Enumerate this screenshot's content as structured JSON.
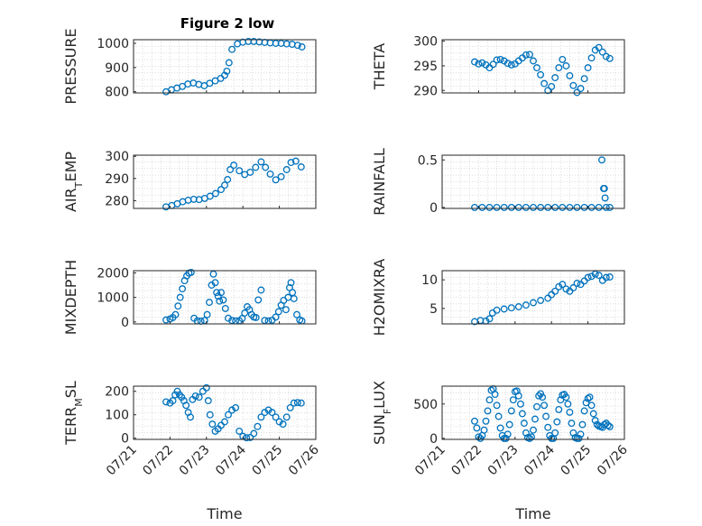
{
  "figure": {
    "title": "Figure 2 low"
  },
  "style": {
    "marker_color": "#0072BD",
    "grid_color": "#d0d0d0",
    "axis_color": "#262626"
  },
  "chart_data": [
    {
      "type": "scatter",
      "ylabel": "PRESSURE",
      "x_ticks": [],
      "yticks": [
        "800",
        "900",
        "1000"
      ],
      "ylim": [
        795,
        1015
      ],
      "xlim": [
        0,
        5
      ],
      "x": [
        0.89,
        1.04,
        1.19,
        1.34,
        1.49,
        1.64,
        1.79,
        1.94,
        2.09,
        2.24,
        2.39,
        2.5,
        2.56,
        2.62,
        2.7,
        2.85,
        3.0,
        3.15,
        3.3,
        3.45,
        3.6,
        3.75,
        3.9,
        4.05,
        4.2,
        4.35,
        4.5,
        4.62
      ],
      "y": [
        800,
        808,
        815,
        822,
        832,
        836,
        830,
        825,
        835,
        845,
        855,
        868,
        885,
        920,
        975,
        998,
        1005,
        1008,
        1008,
        1006,
        1004,
        1002,
        1000,
        1000,
        998,
        996,
        992,
        985
      ]
    },
    {
      "type": "scatter",
      "ylabel": "THETA",
      "x_ticks": [],
      "yticks": [
        "290",
        "295",
        "300"
      ],
      "ylim": [
        289.5,
        300.3
      ],
      "xlim": [
        0,
        5
      ],
      "x": [
        0.89,
        1.0,
        1.1,
        1.2,
        1.3,
        1.4,
        1.5,
        1.6,
        1.7,
        1.8,
        1.9,
        2.0,
        2.1,
        2.2,
        2.3,
        2.4,
        2.5,
        2.6,
        2.7,
        2.8,
        2.9,
        3.0,
        3.1,
        3.2,
        3.3,
        3.4,
        3.5,
        3.6,
        3.7,
        3.8,
        3.9,
        4.0,
        4.1,
        4.2,
        4.3,
        4.4,
        4.5,
        4.6
      ],
      "y": [
        295.8,
        295.4,
        295.6,
        295.2,
        294.6,
        295.3,
        296.2,
        296.3,
        296.0,
        295.5,
        295.2,
        295.4,
        296.0,
        296.6,
        297.2,
        297.3,
        296.0,
        294.6,
        293.2,
        291.4,
        290.0,
        290.8,
        292.6,
        294.6,
        296.3,
        295.0,
        293.0,
        291.0,
        289.6,
        290.4,
        292.4,
        294.6,
        296.6,
        298.2,
        298.7,
        297.8,
        296.9,
        296.5
      ]
    },
    {
      "type": "scatter",
      "ylabel": "AIR_TEMP",
      "x_ticks": [],
      "yticks": [
        "280",
        "290",
        "300"
      ],
      "ylim": [
        276.5,
        300.5
      ],
      "xlim": [
        0,
        5
      ],
      "x": [
        0.89,
        1.05,
        1.2,
        1.35,
        1.5,
        1.65,
        1.8,
        1.95,
        2.1,
        2.25,
        2.4,
        2.5,
        2.58,
        2.65,
        2.75,
        2.9,
        3.05,
        3.2,
        3.35,
        3.5,
        3.62,
        3.75,
        3.9,
        4.05,
        4.2,
        4.32,
        4.45,
        4.6
      ],
      "y": [
        277.2,
        277.8,
        278.6,
        279.5,
        280.2,
        280.6,
        280.5,
        281.0,
        282.0,
        283.2,
        285.0,
        287.0,
        289.5,
        294.0,
        296.0,
        293.5,
        291.8,
        292.8,
        295.0,
        297.5,
        295.0,
        292.0,
        289.4,
        290.8,
        294.0,
        297.2,
        297.8,
        295.2
      ]
    },
    {
      "type": "scatter",
      "ylabel": "RAINFALL",
      "x_ticks": [],
      "yticks": [
        "0",
        "0.5"
      ],
      "ylim": [
        -0.01,
        0.55
      ],
      "xlim": [
        0,
        5
      ],
      "x": [
        0.89,
        1.1,
        1.3,
        1.5,
        1.7,
        1.9,
        2.1,
        2.3,
        2.5,
        2.7,
        2.9,
        3.1,
        3.3,
        3.5,
        3.7,
        3.9,
        4.1,
        4.3,
        4.38,
        4.43,
        4.45,
        4.47,
        4.5,
        4.6
      ],
      "y": [
        0,
        0,
        0,
        0,
        0,
        0,
        0,
        0,
        0,
        0,
        0,
        0,
        0,
        0,
        0,
        0,
        0,
        0,
        0.5,
        0.2,
        0.2,
        0.1,
        0,
        0
      ]
    },
    {
      "type": "scatter",
      "ylabel": "MIXDEPTH",
      "x_ticks": [],
      "yticks": [
        "0",
        "1000",
        "2000"
      ],
      "ylim": [
        -80,
        2090
      ],
      "xlim": [
        0,
        5
      ],
      "x": [
        0.89,
        1.0,
        1.08,
        1.15,
        1.22,
        1.28,
        1.34,
        1.4,
        1.46,
        1.52,
        1.58,
        1.66,
        1.75,
        1.85,
        1.95,
        2.02,
        2.08,
        2.14,
        2.19,
        2.24,
        2.28,
        2.32,
        2.36,
        2.4,
        2.46,
        2.52,
        2.6,
        2.7,
        2.8,
        2.9,
        2.98,
        3.05,
        3.12,
        3.18,
        3.24,
        3.3,
        3.36,
        3.42,
        3.5,
        3.6,
        3.7,
        3.8,
        3.9,
        3.98,
        4.05,
        4.12,
        4.18,
        4.24,
        4.28,
        4.32,
        4.36,
        4.4,
        4.48,
        4.56,
        4.62
      ],
      "y": [
        80,
        120,
        180,
        300,
        650,
        1000,
        1350,
        1680,
        1880,
        1990,
        2020,
        150,
        40,
        30,
        60,
        300,
        800,
        1500,
        1950,
        1600,
        1200,
        1050,
        850,
        1200,
        900,
        550,
        150,
        60,
        40,
        50,
        140,
        360,
        620,
        500,
        300,
        200,
        180,
        900,
        1300,
        60,
        40,
        70,
        200,
        420,
        680,
        880,
        500,
        1000,
        1400,
        1600,
        1200,
        950,
        300,
        80,
        40
      ]
    },
    {
      "type": "scatter",
      "ylabel": "H2OMIXRA",
      "x_ticks": [],
      "yticks": [
        "5",
        "10"
      ],
      "ylim": [
        2.3,
        11.6
      ],
      "xlim": [
        0,
        5
      ],
      "x": [
        0.89,
        1.05,
        1.2,
        1.3,
        1.38,
        1.5,
        1.7,
        1.9,
        2.1,
        2.3,
        2.5,
        2.7,
        2.9,
        3.0,
        3.1,
        3.2,
        3.3,
        3.4,
        3.5,
        3.6,
        3.7,
        3.8,
        3.9,
        4.0,
        4.1,
        4.2,
        4.3,
        4.4,
        4.5,
        4.6
      ],
      "y": [
        2.7,
        2.9,
        2.8,
        3.2,
        4.2,
        4.7,
        4.9,
        5.1,
        5.3,
        5.6,
        6.0,
        6.4,
        6.8,
        7.4,
        8.0,
        8.8,
        9.2,
        8.4,
        8.0,
        8.6,
        9.4,
        9.2,
        9.8,
        10.4,
        10.6,
        11.0,
        10.8,
        9.9,
        10.4,
        10.5
      ]
    },
    {
      "type": "scatter",
      "ylabel": "TERR_MSL",
      "xlabel": "Time",
      "x_ticks": [
        "07/21",
        "07/22",
        "07/23",
        "07/24",
        "07/25",
        "07/26"
      ],
      "yticks": [
        "0",
        "100",
        "200"
      ],
      "ylim": [
        -5,
        222
      ],
      "xlim": [
        0,
        5
      ],
      "x": [
        0.89,
        1.0,
        1.08,
        1.14,
        1.2,
        1.26,
        1.32,
        1.38,
        1.44,
        1.5,
        1.56,
        1.62,
        1.7,
        1.8,
        1.9,
        2.0,
        2.05,
        2.1,
        2.16,
        2.24,
        2.32,
        2.4,
        2.5,
        2.6,
        2.7,
        2.8,
        2.9,
        3.0,
        3.1,
        3.2,
        3.3,
        3.4,
        3.5,
        3.6,
        3.7,
        3.8,
        3.9,
        4.0,
        4.1,
        4.2,
        4.3,
        4.4,
        4.5,
        4.6
      ],
      "y": [
        155,
        150,
        160,
        185,
        200,
        185,
        175,
        160,
        140,
        110,
        90,
        165,
        180,
        175,
        200,
        215,
        160,
        100,
        60,
        30,
        40,
        55,
        70,
        100,
        120,
        130,
        30,
        8,
        2,
        3,
        20,
        50,
        90,
        110,
        120,
        110,
        90,
        70,
        60,
        90,
        130,
        150,
        152,
        150
      ]
    },
    {
      "type": "scatter",
      "ylabel": "SUN_FLUX",
      "xlabel": "Time",
      "x_ticks": [
        "07/21",
        "07/22",
        "07/23",
        "07/24",
        "07/25",
        "07/26"
      ],
      "yticks": [
        "0",
        "500"
      ],
      "ylim": [
        -15,
        760
      ],
      "xlim": [
        0,
        5
      ],
      "x": [
        0.89,
        0.95,
        1.0,
        1.05,
        1.1,
        1.15,
        1.2,
        1.25,
        1.3,
        1.35,
        1.4,
        1.45,
        1.5,
        1.55,
        1.6,
        1.65,
        1.7,
        1.75,
        1.8,
        1.85,
        1.9,
        1.95,
        2.0,
        2.05,
        2.1,
        2.15,
        2.2,
        2.25,
        2.3,
        2.35,
        2.4,
        2.45,
        2.5,
        2.55,
        2.6,
        2.65,
        2.7,
        2.75,
        2.8,
        2.85,
        2.9,
        2.95,
        3.0,
        3.05,
        3.1,
        3.15,
        3.2,
        3.25,
        3.3,
        3.35,
        3.4,
        3.45,
        3.5,
        3.55,
        3.6,
        3.65,
        3.7,
        3.75,
        3.8,
        3.85,
        3.9,
        3.95,
        4.0,
        4.05,
        4.1,
        4.15,
        4.2,
        4.25,
        4.3,
        4.35,
        4.4,
        4.45,
        4.5,
        4.55,
        4.6
      ],
      "y": [
        250,
        150,
        20,
        0,
        40,
        120,
        250,
        400,
        560,
        700,
        720,
        640,
        480,
        320,
        150,
        40,
        0,
        0,
        60,
        200,
        400,
        560,
        680,
        690,
        620,
        500,
        360,
        220,
        80,
        10,
        0,
        20,
        120,
        280,
        460,
        620,
        650,
        600,
        480,
        320,
        160,
        40,
        0,
        0,
        80,
        240,
        420,
        560,
        630,
        640,
        600,
        500,
        380,
        220,
        80,
        10,
        0,
        0,
        60,
        200,
        400,
        520,
        580,
        600,
        480,
        360,
        260,
        200,
        180,
        170,
        160,
        200,
        220,
        190,
        170
      ]
    }
  ]
}
